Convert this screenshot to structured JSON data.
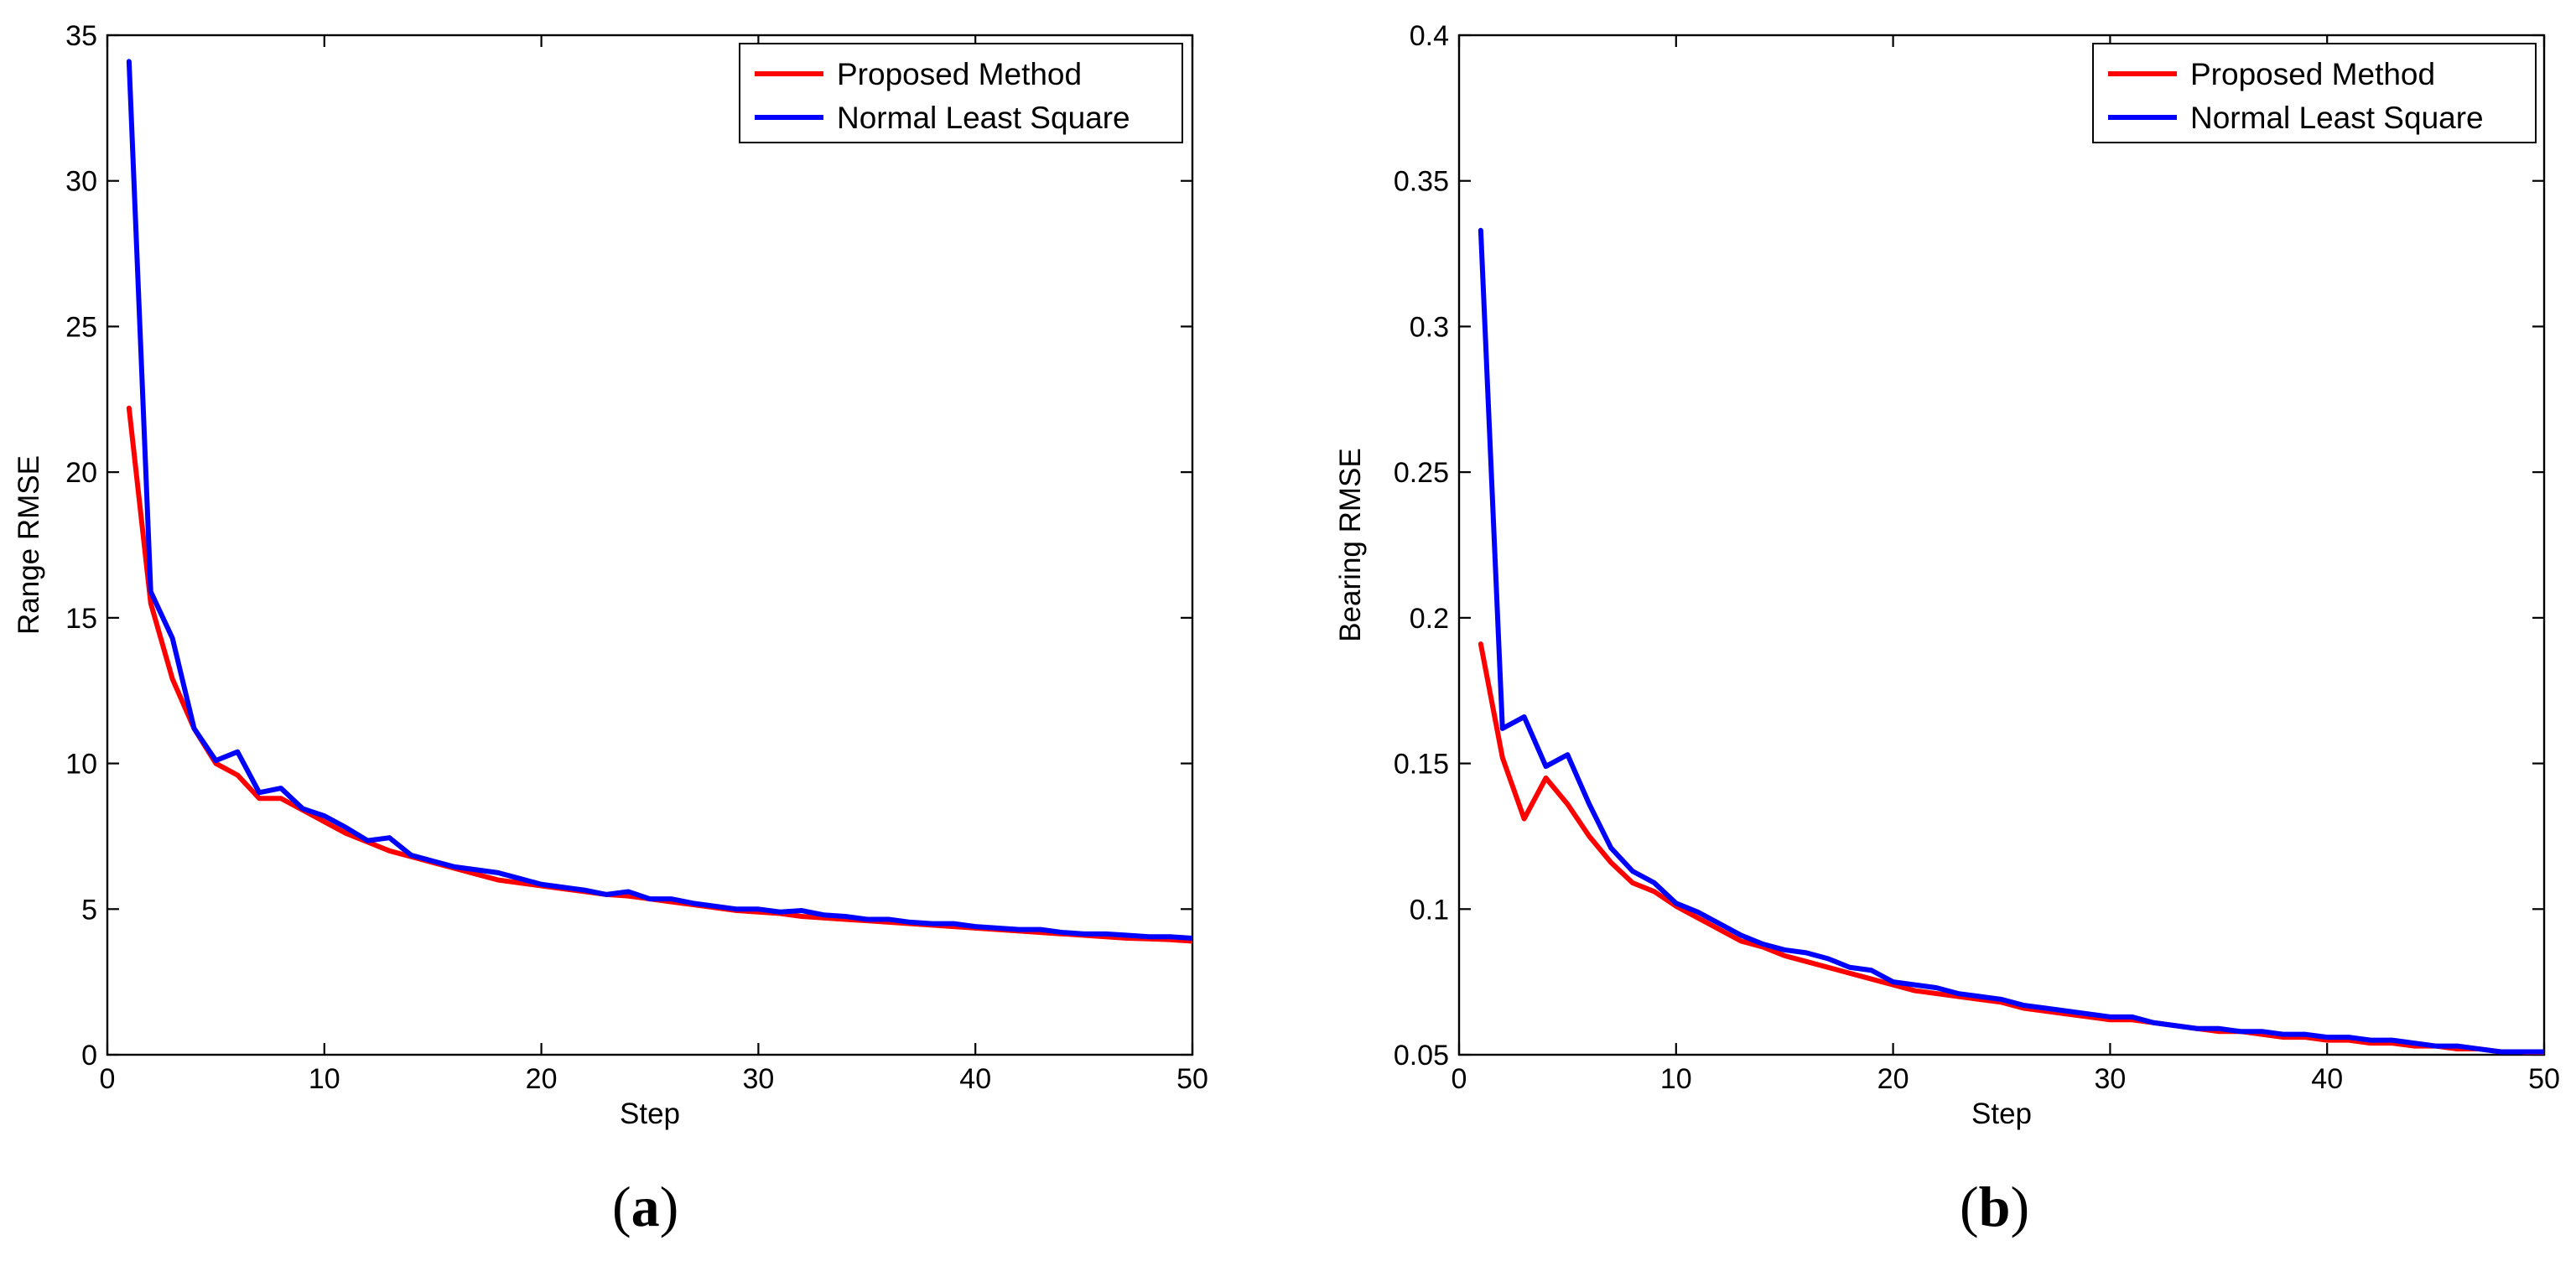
{
  "chart_data": [
    {
      "type": "line",
      "panel_label_open": "(",
      "panel_label_letter": "a",
      "panel_label_close": ")",
      "xlabel": "Step",
      "ylabel": "Range RMSE",
      "xlim": [
        0,
        50
      ],
      "ylim": [
        0,
        35
      ],
      "xticks": [
        0,
        10,
        20,
        30,
        40,
        50
      ],
      "yticks": [
        0,
        5,
        10,
        15,
        20,
        25,
        30,
        35
      ],
      "ytick_labels": [
        "0",
        "5",
        "10",
        "15",
        "20",
        "25",
        "30",
        "35"
      ],
      "legend_position": "top-right",
      "series": [
        {
          "name": "Proposed Method",
          "color": "#ff0000",
          "x": [
            1,
            2,
            3,
            4,
            5,
            6,
            7,
            8,
            9,
            10,
            11,
            12,
            13,
            14,
            15,
            16,
            17,
            18,
            19,
            20,
            21,
            22,
            23,
            24,
            25,
            26,
            27,
            28,
            29,
            30,
            31,
            32,
            33,
            34,
            35,
            36,
            37,
            38,
            39,
            40,
            41,
            42,
            43,
            44,
            45,
            46,
            47,
            48,
            49,
            50
          ],
          "values": [
            22.2,
            15.5,
            12.9,
            11.2,
            10.0,
            9.6,
            8.8,
            8.8,
            8.4,
            8.0,
            7.6,
            7.3,
            7.0,
            6.8,
            6.6,
            6.4,
            6.2,
            6.0,
            5.9,
            5.8,
            5.7,
            5.6,
            5.5,
            5.45,
            5.35,
            5.25,
            5.15,
            5.05,
            4.95,
            4.9,
            4.85,
            4.75,
            4.7,
            4.65,
            4.6,
            4.55,
            4.5,
            4.45,
            4.4,
            4.35,
            4.3,
            4.25,
            4.2,
            4.15,
            4.1,
            4.05,
            4.0,
            3.98,
            3.95,
            3.9
          ]
        },
        {
          "name": "Normal Least Square",
          "color": "#0000ff",
          "x": [
            1,
            2,
            3,
            4,
            5,
            6,
            7,
            8,
            9,
            10,
            11,
            12,
            13,
            14,
            15,
            16,
            17,
            18,
            19,
            20,
            21,
            22,
            23,
            24,
            25,
            26,
            27,
            28,
            29,
            30,
            31,
            32,
            33,
            34,
            35,
            36,
            37,
            38,
            39,
            40,
            41,
            42,
            43,
            44,
            45,
            46,
            47,
            48,
            49,
            50
          ],
          "values": [
            34.1,
            15.9,
            14.3,
            11.2,
            10.1,
            10.4,
            9.0,
            9.15,
            8.45,
            8.2,
            7.8,
            7.35,
            7.45,
            6.85,
            6.65,
            6.45,
            6.35,
            6.25,
            6.05,
            5.85,
            5.75,
            5.65,
            5.5,
            5.6,
            5.35,
            5.35,
            5.2,
            5.1,
            5.0,
            5.0,
            4.9,
            4.95,
            4.8,
            4.75,
            4.65,
            4.65,
            4.55,
            4.5,
            4.5,
            4.4,
            4.35,
            4.3,
            4.3,
            4.2,
            4.15,
            4.15,
            4.1,
            4.05,
            4.05,
            4.0
          ]
        }
      ]
    },
    {
      "type": "line",
      "panel_label_open": "(",
      "panel_label_letter": "b",
      "panel_label_close": ")",
      "xlabel": "Step",
      "ylabel": "Bearing RMSE",
      "xlim": [
        0,
        50
      ],
      "ylim": [
        0.05,
        0.4
      ],
      "xticks": [
        0,
        10,
        20,
        30,
        40,
        50
      ],
      "yticks": [
        0.05,
        0.1,
        0.15,
        0.2,
        0.25,
        0.3,
        0.35,
        0.4
      ],
      "ytick_labels": [
        "0.05",
        "0.1",
        "0.15",
        "0.2",
        "0.25",
        "0.3",
        "0.35",
        "0.4"
      ],
      "legend_position": "top-right",
      "series": [
        {
          "name": "Proposed Method",
          "color": "#ff0000",
          "x": [
            1,
            2,
            3,
            4,
            5,
            6,
            7,
            8,
            9,
            10,
            11,
            12,
            13,
            14,
            15,
            16,
            17,
            18,
            19,
            20,
            21,
            22,
            23,
            24,
            25,
            26,
            27,
            28,
            29,
            30,
            31,
            32,
            33,
            34,
            35,
            36,
            37,
            38,
            39,
            40,
            41,
            42,
            43,
            44,
            45,
            46,
            47,
            48,
            49,
            50
          ],
          "values": [
            0.191,
            0.152,
            0.131,
            0.145,
            0.136,
            0.125,
            0.116,
            0.109,
            0.106,
            0.101,
            0.097,
            0.093,
            0.089,
            0.087,
            0.084,
            0.082,
            0.08,
            0.078,
            0.076,
            0.074,
            0.072,
            0.071,
            0.07,
            0.069,
            0.068,
            0.066,
            0.065,
            0.064,
            0.063,
            0.062,
            0.062,
            0.061,
            0.06,
            0.059,
            0.058,
            0.058,
            0.057,
            0.056,
            0.056,
            0.055,
            0.055,
            0.054,
            0.054,
            0.053,
            0.053,
            0.052,
            0.052,
            0.051,
            0.051,
            0.05
          ]
        },
        {
          "name": "Normal Least Square",
          "color": "#0000ff",
          "x": [
            1,
            2,
            3,
            4,
            5,
            6,
            7,
            8,
            9,
            10,
            11,
            12,
            13,
            14,
            15,
            16,
            17,
            18,
            19,
            20,
            21,
            22,
            23,
            24,
            25,
            26,
            27,
            28,
            29,
            30,
            31,
            32,
            33,
            34,
            35,
            36,
            37,
            38,
            39,
            40,
            41,
            42,
            43,
            44,
            45,
            46,
            47,
            48,
            49,
            50
          ],
          "values": [
            0.333,
            0.162,
            0.166,
            0.149,
            0.153,
            0.136,
            0.121,
            0.113,
            0.109,
            0.102,
            0.099,
            0.095,
            0.091,
            0.088,
            0.086,
            0.085,
            0.083,
            0.08,
            0.079,
            0.075,
            0.074,
            0.073,
            0.071,
            0.07,
            0.069,
            0.067,
            0.066,
            0.065,
            0.064,
            0.063,
            0.063,
            0.061,
            0.06,
            0.059,
            0.059,
            0.058,
            0.058,
            0.057,
            0.057,
            0.056,
            0.056,
            0.055,
            0.055,
            0.054,
            0.053,
            0.053,
            0.052,
            0.051,
            0.051,
            0.051
          ]
        }
      ]
    }
  ]
}
